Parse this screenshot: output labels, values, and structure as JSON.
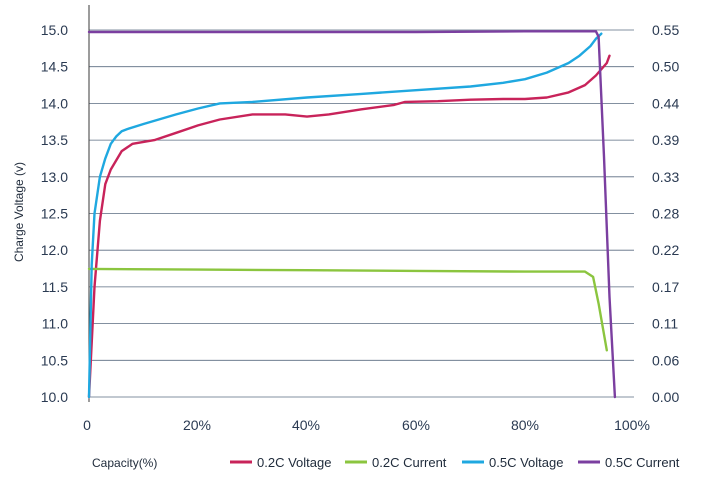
{
  "chart_data": {
    "type": "line",
    "xlabel": "Capacity(%)",
    "ylabel": "Charge Voltage (v)",
    "x_ticks": [
      "0",
      "20%",
      "40%",
      "60%",
      "80%",
      "100%"
    ],
    "xlim": [
      0,
      100
    ],
    "ylim": [
      10.0,
      15.0
    ],
    "y_ticks": [
      "10.0",
      "10.5",
      "11.0",
      "11.5",
      "12.0",
      "12.5",
      "13.0",
      "13.5",
      "14.0",
      "14.5",
      "15.0"
    ],
    "y2_ticks": [
      "0.00",
      "0.06",
      "0.11",
      "0.17",
      "0.22",
      "0.28",
      "0.33",
      "0.39",
      "0.44",
      "0.50",
      "0.55"
    ],
    "grid": "horizontal",
    "legend_position": "bottom",
    "series": [
      {
        "name": "0.2C Voltage",
        "color": "#c8235a",
        "axis": "left",
        "x": [
          0,
          1,
          2,
          3,
          4,
          6,
          8,
          12,
          16,
          20,
          24,
          30,
          36,
          40,
          44,
          50,
          56,
          58,
          64,
          70,
          76,
          80,
          84,
          88,
          91,
          93,
          95,
          95.5
        ],
        "y": [
          10.0,
          11.5,
          12.4,
          12.9,
          13.1,
          13.35,
          13.45,
          13.5,
          13.6,
          13.7,
          13.78,
          13.85,
          13.85,
          13.82,
          13.85,
          13.92,
          13.98,
          14.02,
          14.03,
          14.05,
          14.06,
          14.06,
          14.08,
          14.15,
          14.25,
          14.38,
          14.55,
          14.65
        ]
      },
      {
        "name": "0.2C Current",
        "color": "#8bc53f",
        "axis": "right",
        "x": [
          0,
          20,
          40,
          60,
          80,
          91,
          92.5,
          93.5,
          95
        ],
        "y": [
          0.192,
          0.191,
          0.19,
          0.189,
          0.188,
          0.188,
          0.18,
          0.14,
          0.07
        ]
      },
      {
        "name": "0.5C Voltage",
        "color": "#1fa8e0",
        "axis": "left",
        "x": [
          0,
          0.5,
          1,
          2,
          3,
          4,
          5,
          6,
          7,
          10,
          16,
          20,
          24,
          30,
          40,
          50,
          60,
          70,
          76,
          80,
          84,
          88,
          90,
          92,
          93,
          94
        ],
        "y": [
          10.0,
          11.8,
          12.5,
          13.0,
          13.25,
          13.45,
          13.55,
          13.62,
          13.65,
          13.72,
          13.85,
          13.93,
          14.0,
          14.02,
          14.08,
          14.13,
          14.18,
          14.23,
          14.28,
          14.33,
          14.42,
          14.55,
          14.65,
          14.78,
          14.88,
          14.95
        ]
      },
      {
        "name": "0.5C Current",
        "color": "#7b3fa0",
        "axis": "right",
        "x": [
          0,
          20,
          40,
          60,
          80,
          92,
          93,
          93.5,
          94.5,
          95.5,
          96.5
        ],
        "y": [
          0.547,
          0.547,
          0.547,
          0.547,
          0.548,
          0.548,
          0.548,
          0.54,
          0.36,
          0.15,
          0.0
        ]
      }
    ]
  }
}
